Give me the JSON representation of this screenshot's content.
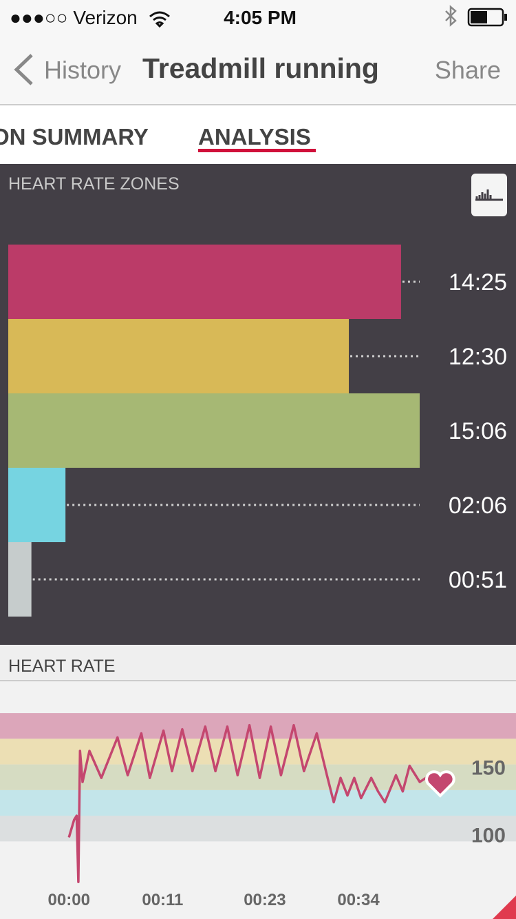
{
  "status_bar": {
    "carrier": "●●●○○ Verizon",
    "time": "4:05 PM"
  },
  "nav": {
    "back": "History",
    "title": "Treadmill running",
    "action": "Share"
  },
  "tabs": [
    "ON SUMMARY",
    "ANALYSIS"
  ],
  "chart_data": [
    {
      "type": "hbar",
      "title": "HEART RATE ZONES",
      "categories": [
        null,
        null,
        null,
        null,
        null
      ],
      "values": [
        865,
        750,
        906,
        126,
        51
      ],
      "value_labels": [
        "14:25",
        "12:30",
        "15:06",
        "02:06",
        "00:51"
      ],
      "colors": [
        "#bb3b68",
        "#d8b957",
        "#a6b874",
        "#76d4e1",
        "#c6cccc"
      ],
      "xlim": [
        0,
        906
      ]
    },
    {
      "type": "line",
      "title": "HEART RATE",
      "x": [
        0,
        0.6,
        0.9,
        1.1,
        1.3,
        1.6,
        2.4,
        3.8,
        5.7,
        6.9,
        8.5,
        9.5,
        11.1,
        12.1,
        13.3,
        14.5,
        16.0,
        17.2,
        18.6,
        19.8,
        21.2,
        22.4,
        23.7,
        24.9,
        26.4,
        27.6,
        29.1,
        30.3,
        31.1,
        31.9,
        32.7,
        33.5,
        34.3,
        35.5,
        36.3,
        37.1,
        38.4,
        39.2,
        40.0,
        41.2,
        42.4,
        43.6
      ],
      "values": [
        98,
        111,
        114,
        65,
        162,
        139,
        162,
        142,
        172,
        144,
        175,
        142,
        177,
        147,
        178,
        147,
        180,
        147,
        180,
        144,
        181,
        142,
        180,
        144,
        181,
        147,
        175,
        144,
        124,
        142,
        129,
        142,
        127,
        142,
        132,
        124,
        144,
        132,
        151,
        139,
        144,
        138
      ],
      "color": "#c4476f",
      "bands": [
        {
          "from": 95,
          "to": 114,
          "color": "#dcdfe0"
        },
        {
          "from": 114,
          "to": 133,
          "color": "#c3e5ea"
        },
        {
          "from": 133,
          "to": 152,
          "color": "#d6dcc2"
        },
        {
          "from": 152,
          "to": 171,
          "color": "#ecdfb4"
        },
        {
          "from": 171,
          "to": 190,
          "color": "#dca6ba"
        }
      ],
      "xlim": [
        -8.1,
        52.5
      ],
      "ylim": [
        60,
        213
      ],
      "xticks": [
        {
          "value": 0,
          "label": "00:00"
        },
        {
          "value": 11,
          "label": "00:11"
        },
        {
          "value": 23,
          "label": "00:23"
        },
        {
          "value": 34,
          "label": "00:34"
        }
      ],
      "yticks": [
        100,
        150
      ]
    }
  ]
}
